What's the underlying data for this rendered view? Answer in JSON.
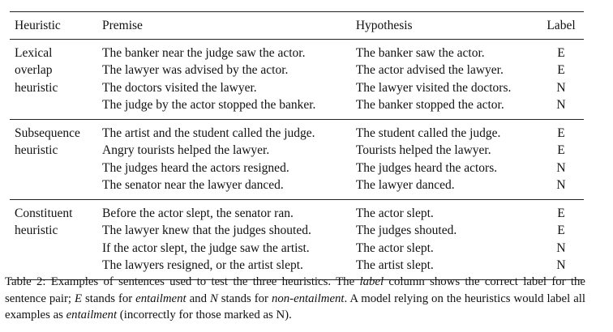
{
  "table": {
    "headers": [
      "Heuristic",
      "Premise",
      "Hypothesis",
      "Label"
    ],
    "groups": [
      {
        "heuristic": "Lexical overlap heuristic",
        "rows": [
          {
            "premise": "The banker near the judge saw the actor.",
            "hypothesis": "The banker saw the actor.",
            "label": "E"
          },
          {
            "premise": "The lawyer was advised by the actor.",
            "hypothesis": "The actor advised the lawyer.",
            "label": "E"
          },
          {
            "premise": "The doctors visited the lawyer.",
            "hypothesis": "The lawyer visited the doctors.",
            "label": "N"
          },
          {
            "premise": "The judge by the actor stopped the banker.",
            "hypothesis": "The banker stopped the actor.",
            "label": "N"
          }
        ]
      },
      {
        "heuristic": "Subsequence heuristic",
        "rows": [
          {
            "premise": "The artist and the student called the judge.",
            "hypothesis": "The student called the judge.",
            "label": "E"
          },
          {
            "premise": "Angry tourists helped the lawyer.",
            "hypothesis": "Tourists helped the lawyer.",
            "label": "E"
          },
          {
            "premise": "The judges heard the actors resigned.",
            "hypothesis": "The judges heard the actors.",
            "label": "N"
          },
          {
            "premise": "The senator near the lawyer danced.",
            "hypothesis": "The lawyer danced.",
            "label": "N"
          }
        ]
      },
      {
        "heuristic": "Constituent heuristic",
        "rows": [
          {
            "premise": "Before the actor slept, the senator ran.",
            "hypothesis": "The actor slept.",
            "label": "E"
          },
          {
            "premise": "The lawyer knew that the judges shouted.",
            "hypothesis": "The judges shouted.",
            "label": "E"
          },
          {
            "premise": "If the actor slept, the judge saw the artist.",
            "hypothesis": "The actor slept.",
            "label": "N"
          },
          {
            "premise": "The lawyers resigned, or the artist slept.",
            "hypothesis": "The artist slept.",
            "label": "N"
          }
        ]
      }
    ]
  },
  "caption": {
    "p1": "Table 2: Examples of sentences used to test the three heuristics. The ",
    "em1": "label",
    "p2": " column shows the correct label for the sentence pair; ",
    "em2": "E",
    "p3": " stands for ",
    "em3": "entailment",
    "p4": " and ",
    "em4": "N",
    "p5": " stands for ",
    "em5": "non-entailment",
    "p6": ". A model relying on the heuristics would label all examples as ",
    "em6": "entailment",
    "p7": " (incorrectly for those marked as N)."
  }
}
